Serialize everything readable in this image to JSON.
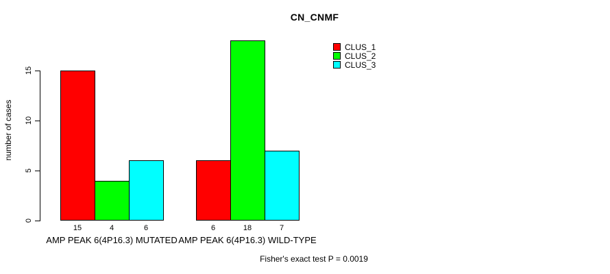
{
  "title": "CN_CNMF",
  "ylabel": "number of cases",
  "footer": "Fisher's exact test P = 0.0019",
  "y_ticks": [
    0,
    5,
    10,
    15
  ],
  "colors": {
    "clus_1": "#ff0000",
    "clus_2": "#00ff00",
    "clus_3": "#00ffff",
    "axis": "#000000",
    "background": "#ffffff"
  },
  "chart_data": {
    "type": "bar",
    "title": "CN_CNMF",
    "xlabel": "",
    "ylabel": "number of cases",
    "ylim": [
      0,
      18
    ],
    "y_ticks": [
      0,
      5,
      10,
      15
    ],
    "grid": false,
    "legend_position": "top-right",
    "categories": [
      "AMP PEAK 6(4P16.3) MUTATED",
      "AMP PEAK 6(4P16.3) WILD-TYPE"
    ],
    "series": [
      {
        "name": "CLUS_1",
        "color": "#ff0000",
        "values": [
          15,
          6
        ]
      },
      {
        "name": "CLUS_2",
        "color": "#00ff00",
        "values": [
          4,
          18
        ]
      },
      {
        "name": "CLUS_3",
        "color": "#00ffff",
        "values": [
          6,
          7
        ]
      }
    ],
    "bar_value_labels": [
      [
        15,
        4,
        6
      ],
      [
        6,
        18,
        7
      ]
    ],
    "annotation": "Fisher's exact test P = 0.0019"
  }
}
